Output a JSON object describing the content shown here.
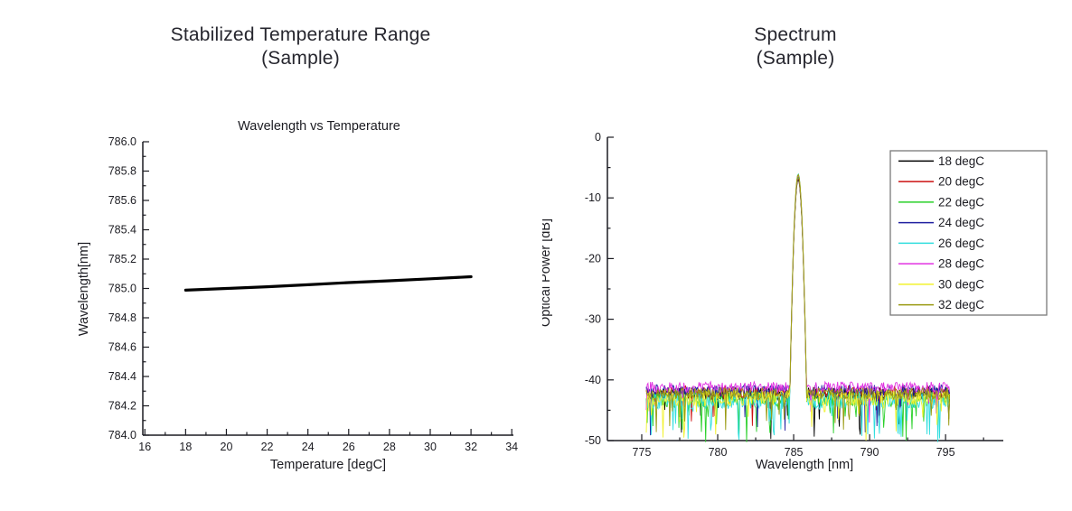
{
  "left_panel": {
    "title_line1": "Stabilized Temperature Range",
    "title_line2": "(Sample)"
  },
  "right_panel": {
    "title_line1": "Spectrum",
    "title_line2": "(Sample)"
  },
  "chart_data": [
    {
      "type": "line",
      "title": "Wavelength vs Temperature",
      "xlabel": "Temperature [degC]",
      "ylabel": "Wavelength[nm]",
      "xlim": [
        15.9,
        34.08
      ],
      "ylim": [
        784.0,
        786.0
      ],
      "x_major_ticks": [
        16,
        18,
        20,
        22,
        24,
        26,
        28,
        30,
        32,
        34
      ],
      "y_major_ticks": [
        784.0,
        784.2,
        784.4,
        784.6,
        784.8,
        785.0,
        785.2,
        785.4,
        785.6,
        785.8,
        786.0
      ],
      "x_minor_step": 1,
      "y_minor_step": 0.1,
      "y_tick_decimals": 1,
      "grid": false,
      "legend": false,
      "series": [
        {
          "name": "wavelength",
          "color": "#000000",
          "x": [
            18,
            20,
            22,
            24,
            26,
            28,
            30,
            32
          ],
          "y": [
            784.988,
            785.0,
            785.012,
            785.025,
            785.04,
            785.052,
            785.066,
            785.08
          ]
        }
      ]
    },
    {
      "type": "line",
      "title": "",
      "xlabel": "Wavelength [nm]",
      "ylabel": "Optical Power [dB]",
      "xlim": [
        772.74,
        798.8
      ],
      "ylim": [
        -50,
        0
      ],
      "x_major_ticks": [
        775,
        780,
        785,
        790,
        795
      ],
      "y_major_ticks": [
        0,
        -10,
        -20,
        -30,
        -40,
        -50
      ],
      "x_minor_step": 2.5,
      "y_minor_step": 5,
      "y_tick_decimals": 0,
      "grid": false,
      "legend": true,
      "legend_position": "top-right",
      "peak_center_nm": 785.3,
      "peak_halfwidth_nm": 0.55,
      "noise_band_db": [
        -48,
        -40
      ],
      "x_data_start": 775.3,
      "x_data_end": 795.3,
      "x_step": 0.055,
      "series": [
        {
          "name": "18 degC",
          "color": "#000000",
          "noise_mean_db": -42.3,
          "noise_amp_db": 1.1,
          "spike_prob": 0.04,
          "peak_top_db": -7.0,
          "seed": 11
        },
        {
          "name": "20 degC",
          "color": "#cc1111",
          "noise_mean_db": -42.0,
          "noise_amp_db": 1.0,
          "spike_prob": 0.03,
          "peak_top_db": -6.8,
          "seed": 22
        },
        {
          "name": "22 degC",
          "color": "#2ad02a",
          "noise_mean_db": -43.2,
          "noise_amp_db": 1.4,
          "spike_prob": 0.09,
          "peak_top_db": -6.6,
          "seed": 33
        },
        {
          "name": "24 degC",
          "color": "#2020a0",
          "noise_mean_db": -41.8,
          "noise_amp_db": 1.0,
          "spike_prob": 0.03,
          "peak_top_db": -6.4,
          "seed": 44
        },
        {
          "name": "26 degC",
          "color": "#30dede",
          "noise_mean_db": -43.4,
          "noise_amp_db": 1.4,
          "spike_prob": 0.08,
          "peak_top_db": -6.05,
          "seed": 55
        },
        {
          "name": "28 degC",
          "color": "#e233e2",
          "noise_mean_db": -41.2,
          "noise_amp_db": 0.9,
          "spike_prob": 0.02,
          "peak_top_db": -6.3,
          "seed": 66
        },
        {
          "name": "30 degC",
          "color": "#f2f22e",
          "noise_mean_db": -43.0,
          "noise_amp_db": 1.3,
          "spike_prob": 0.08,
          "peak_top_db": -6.2,
          "seed": 77
        },
        {
          "name": "32 degC",
          "color": "#9a9a12",
          "noise_mean_db": -42.3,
          "noise_amp_db": 1.0,
          "spike_prob": 0.05,
          "peak_top_db": -6.15,
          "seed": 88
        }
      ]
    }
  ]
}
